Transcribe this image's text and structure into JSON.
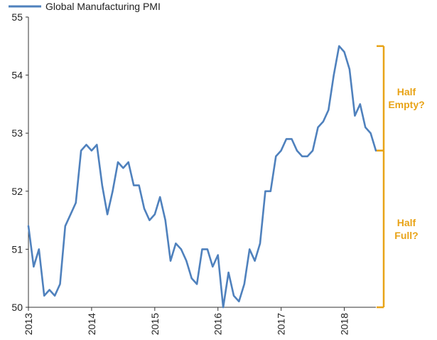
{
  "chart_data": {
    "type": "line",
    "title": "",
    "xlabel": "",
    "ylabel": "",
    "ylim": [
      50,
      55
    ],
    "xlim": [
      2013,
      2018.5
    ],
    "yticks": [
      50,
      51,
      52,
      53,
      54,
      55
    ],
    "xticks": [
      "2013",
      "2014",
      "2015",
      "2016",
      "2017",
      "2018"
    ],
    "grid": false,
    "legend_position": "top-left",
    "series": [
      {
        "name": "Global Manufacturing PMI",
        "color": "#4F81BD",
        "x": [
          2013.0,
          2013.083,
          2013.167,
          2013.25,
          2013.333,
          2013.417,
          2013.5,
          2013.583,
          2013.667,
          2013.75,
          2013.833,
          2013.917,
          2014.0,
          2014.083,
          2014.167,
          2014.25,
          2014.333,
          2014.417,
          2014.5,
          2014.583,
          2014.667,
          2014.75,
          2014.833,
          2014.917,
          2015.0,
          2015.083,
          2015.167,
          2015.25,
          2015.333,
          2015.417,
          2015.5,
          2015.583,
          2015.667,
          2015.75,
          2015.833,
          2015.917,
          2016.0,
          2016.083,
          2016.167,
          2016.25,
          2016.333,
          2016.417,
          2016.5,
          2016.583,
          2016.667,
          2016.75,
          2016.833,
          2016.917,
          2017.0,
          2017.083,
          2017.167,
          2017.25,
          2017.333,
          2017.417,
          2017.5,
          2017.583,
          2017.667,
          2017.75,
          2017.833,
          2017.917,
          2018.0,
          2018.083,
          2018.167,
          2018.25,
          2018.333,
          2018.417,
          2018.5
        ],
        "values": [
          51.4,
          50.7,
          51.0,
          50.2,
          50.3,
          50.2,
          50.4,
          51.4,
          51.6,
          51.8,
          52.7,
          52.8,
          52.7,
          52.8,
          52.1,
          51.6,
          52.0,
          52.5,
          52.4,
          52.5,
          52.1,
          52.1,
          51.7,
          51.5,
          51.6,
          51.9,
          51.5,
          50.8,
          51.1,
          51.0,
          50.8,
          50.5,
          50.4,
          51.0,
          51.0,
          50.7,
          50.9,
          50.0,
          50.6,
          50.2,
          50.1,
          50.4,
          51.0,
          50.8,
          51.1,
          52.0,
          52.0,
          52.6,
          52.7,
          52.9,
          52.9,
          52.7,
          52.6,
          52.6,
          52.7,
          53.1,
          53.2,
          53.4,
          54.0,
          54.5,
          54.4,
          54.1,
          53.3,
          53.5,
          53.1,
          53.0,
          52.7
        ]
      }
    ],
    "annotations": [
      {
        "id": "half-empty",
        "lines": [
          "Half",
          "Empty?"
        ],
        "range": [
          52.7,
          54.5
        ],
        "color": "#E8A317"
      },
      {
        "id": "half-full",
        "lines": [
          "Half",
          "Full?"
        ],
        "range": [
          50.0,
          52.7
        ],
        "color": "#E8A317"
      }
    ]
  }
}
